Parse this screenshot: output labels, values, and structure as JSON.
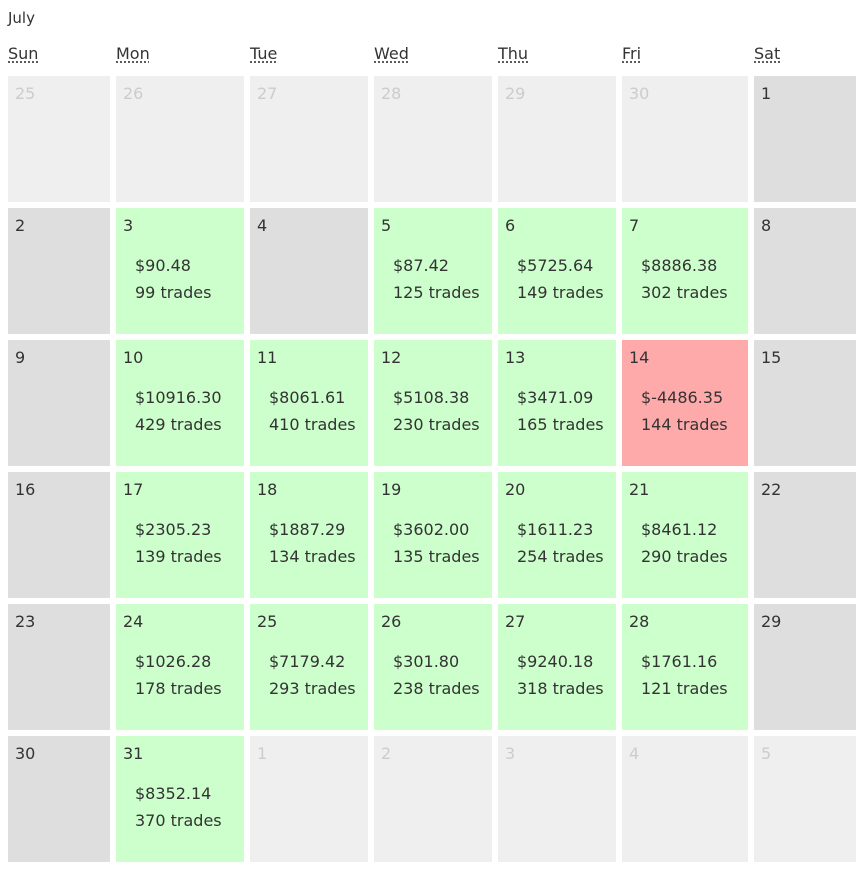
{
  "header": {
    "title": "July"
  },
  "weekdays": [
    "Sun",
    "Mon",
    "Tue",
    "Wed",
    "Thu",
    "Fri",
    "Sat"
  ],
  "weeks": [
    [
      {
        "day": 25
      },
      {
        "day": 26
      },
      {
        "day": 27
      },
      {
        "day": 28
      },
      {
        "day": 29
      },
      {
        "day": 30
      },
      {
        "day": 1
      }
    ],
    [
      {
        "day": 2
      },
      {
        "day": 3,
        "pnl": "$90.48",
        "trades": "99 trades"
      },
      {
        "day": 4
      },
      {
        "day": 5,
        "pnl": "$87.42",
        "trades": "125 trades"
      },
      {
        "day": 6,
        "pnl": "$5725.64",
        "trades": "149 trades"
      },
      {
        "day": 7,
        "pnl": "$8886.38",
        "trades": "302 trades"
      },
      {
        "day": 8
      }
    ],
    [
      {
        "day": 9
      },
      {
        "day": 10,
        "pnl": "$10916.30",
        "trades": "429 trades"
      },
      {
        "day": 11,
        "pnl": "$8061.61",
        "trades": "410 trades"
      },
      {
        "day": 12,
        "pnl": "$5108.38",
        "trades": "230 trades"
      },
      {
        "day": 13,
        "pnl": "$3471.09",
        "trades": "165 trades"
      },
      {
        "day": 14,
        "pnl": "$-4486.35",
        "trades": "144 trades"
      },
      {
        "day": 15
      }
    ],
    [
      {
        "day": 16
      },
      {
        "day": 17,
        "pnl": "$2305.23",
        "trades": "139 trades"
      },
      {
        "day": 18,
        "pnl": "$1887.29",
        "trades": "134 trades"
      },
      {
        "day": 19,
        "pnl": "$3602.00",
        "trades": "135 trades"
      },
      {
        "day": 20,
        "pnl": "$1611.23",
        "trades": "254 trades"
      },
      {
        "day": 21,
        "pnl": "$8461.12",
        "trades": "290 trades"
      },
      {
        "day": 22
      }
    ],
    [
      {
        "day": 23
      },
      {
        "day": 24,
        "pnl": "$1026.28",
        "trades": "178 trades"
      },
      {
        "day": 25,
        "pnl": "$7179.42",
        "trades": "293 trades"
      },
      {
        "day": 26,
        "pnl": "$301.80",
        "trades": "238 trades"
      },
      {
        "day": 27,
        "pnl": "$9240.18",
        "trades": "318 trades"
      },
      {
        "day": 28,
        "pnl": "$1761.16",
        "trades": "121 trades"
      },
      {
        "day": 29
      }
    ],
    [
      {
        "day": 30
      },
      {
        "day": 31,
        "pnl": "$8352.14",
        "trades": "370 trades"
      },
      {
        "day": 1
      },
      {
        "day": 2
      },
      {
        "day": 3
      },
      {
        "day": 4
      },
      {
        "day": 5
      }
    ]
  ]
}
